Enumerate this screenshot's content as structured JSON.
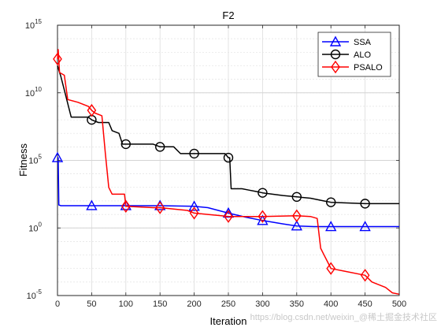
{
  "chart_data": {
    "type": "line",
    "title": "F2",
    "xlabel": "Iteration",
    "ylabel": "Fitness",
    "xlim": [
      0,
      500
    ],
    "ylim_log10": [
      -5,
      15
    ],
    "yscale": "log",
    "grid": "major and minor",
    "legend_position": "top-right",
    "x_ticks": [
      "0",
      "50",
      "100",
      "150",
      "200",
      "250",
      "300",
      "350",
      "400",
      "450",
      "500"
    ],
    "y_ticks": [
      {
        "base": "10",
        "exp": "-5",
        "log": -5
      },
      {
        "base": "10",
        "exp": "0",
        "log": 0
      },
      {
        "base": "10",
        "exp": "5",
        "log": 5
      },
      {
        "base": "10",
        "exp": "10",
        "log": 10
      },
      {
        "base": "10",
        "exp": "15",
        "log": 15
      }
    ],
    "series": [
      {
        "name": "SSA",
        "color": "#0000ff",
        "marker": "triangle",
        "log10_points": [
          [
            0,
            5.2
          ],
          [
            1,
            5.2
          ],
          [
            2,
            1.7
          ],
          [
            5,
            1.65
          ],
          [
            50,
            1.65
          ],
          [
            100,
            1.65
          ],
          [
            150,
            1.65
          ],
          [
            200,
            1.6
          ],
          [
            220,
            1.5
          ],
          [
            250,
            1.1
          ],
          [
            275,
            0.8
          ],
          [
            300,
            0.55
          ],
          [
            330,
            0.3
          ],
          [
            350,
            0.15
          ],
          [
            375,
            0.1
          ],
          [
            400,
            0.1
          ],
          [
            450,
            0.1
          ],
          [
            500,
            0.1
          ]
        ],
        "marker_x": [
          0,
          50,
          100,
          150,
          200,
          250,
          300,
          350,
          400,
          450
        ]
      },
      {
        "name": "ALO",
        "color": "#000000",
        "marker": "circle",
        "log10_points": [
          [
            0,
            12.0
          ],
          [
            5,
            11.2
          ],
          [
            10,
            10.2
          ],
          [
            20,
            8.2
          ],
          [
            45,
            8.2
          ],
          [
            50,
            8.0
          ],
          [
            60,
            7.8
          ],
          [
            75,
            7.8
          ],
          [
            80,
            7.2
          ],
          [
            90,
            7.0
          ],
          [
            95,
            6.2
          ],
          [
            100,
            6.2
          ],
          [
            140,
            6.2
          ],
          [
            150,
            6.0
          ],
          [
            170,
            6.0
          ],
          [
            180,
            5.5
          ],
          [
            200,
            5.5
          ],
          [
            245,
            5.5
          ],
          [
            250,
            5.2
          ],
          [
            252,
            5.2
          ],
          [
            254,
            2.9
          ],
          [
            270,
            2.9
          ],
          [
            280,
            2.8
          ],
          [
            290,
            2.7
          ],
          [
            300,
            2.6
          ],
          [
            330,
            2.4
          ],
          [
            350,
            2.3
          ],
          [
            370,
            2.2
          ],
          [
            390,
            2.0
          ],
          [
            400,
            1.9
          ],
          [
            450,
            1.8
          ],
          [
            500,
            1.8
          ]
        ],
        "marker_x": [
          50,
          100,
          150,
          200,
          250,
          300,
          350,
          400,
          450
        ]
      },
      {
        "name": "PSALO",
        "color": "#ff0000",
        "marker": "diamond",
        "log10_points": [
          [
            0,
            12.5
          ],
          [
            1,
            13.2
          ],
          [
            3,
            11.5
          ],
          [
            10,
            11.3
          ],
          [
            15,
            9.5
          ],
          [
            30,
            9.3
          ],
          [
            45,
            9.0
          ],
          [
            50,
            8.7
          ],
          [
            55,
            8.5
          ],
          [
            65,
            8.3
          ],
          [
            70,
            5.5
          ],
          [
            75,
            3.0
          ],
          [
            80,
            2.5
          ],
          [
            98,
            2.5
          ],
          [
            100,
            1.6
          ],
          [
            140,
            1.5
          ],
          [
            150,
            1.5
          ],
          [
            190,
            1.3
          ],
          [
            200,
            1.1
          ],
          [
            220,
            1.0
          ],
          [
            240,
            0.9
          ],
          [
            250,
            0.85
          ],
          [
            300,
            0.85
          ],
          [
            350,
            0.9
          ],
          [
            370,
            0.85
          ],
          [
            380,
            0.7
          ],
          [
            385,
            -1.5
          ],
          [
            390,
            -2.0
          ],
          [
            395,
            -2.5
          ],
          [
            400,
            -3.0
          ],
          [
            420,
            -3.2
          ],
          [
            450,
            -3.5
          ],
          [
            460,
            -4.0
          ],
          [
            480,
            -4.4
          ],
          [
            490,
            -4.8
          ],
          [
            500,
            -4.9
          ]
        ],
        "marker_x": [
          0,
          50,
          100,
          150,
          200,
          250,
          300,
          350,
          400,
          450
        ]
      }
    ]
  },
  "watermark": "https://blog.csdn.net/weixin_@稀土掘金技术社区"
}
